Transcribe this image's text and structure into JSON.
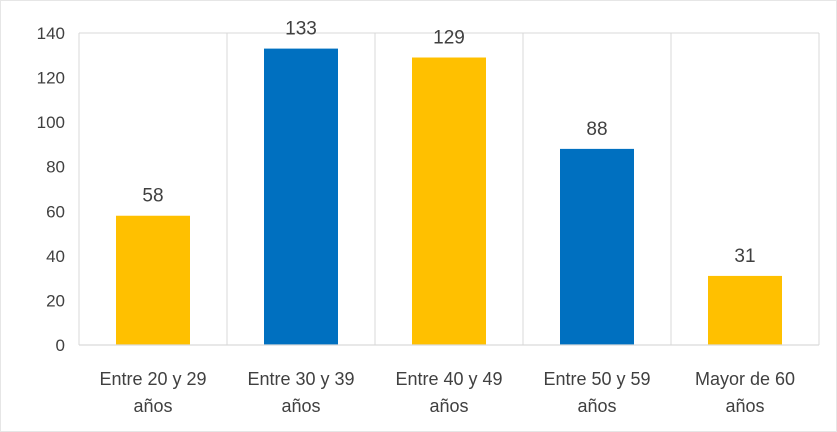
{
  "chart_data": {
    "type": "bar",
    "categories": [
      [
        "Entre 20 y 29",
        "años"
      ],
      [
        "Entre 30 y 39",
        "años"
      ],
      [
        "Entre 40 y 49",
        "años"
      ],
      [
        "Entre 50 y 59",
        "años"
      ],
      [
        "Mayor de 60",
        "años"
      ]
    ],
    "values": [
      58,
      133,
      129,
      88,
      31
    ],
    "bar_colors": [
      "#FFC000",
      "#0070C0",
      "#FFC000",
      "#0070C0",
      "#FFC000"
    ],
    "ylim": [
      0,
      140
    ],
    "yticks": [
      0,
      20,
      40,
      60,
      80,
      100,
      120,
      140
    ],
    "grid": "vertical",
    "legend": "none",
    "data_labels": true
  }
}
